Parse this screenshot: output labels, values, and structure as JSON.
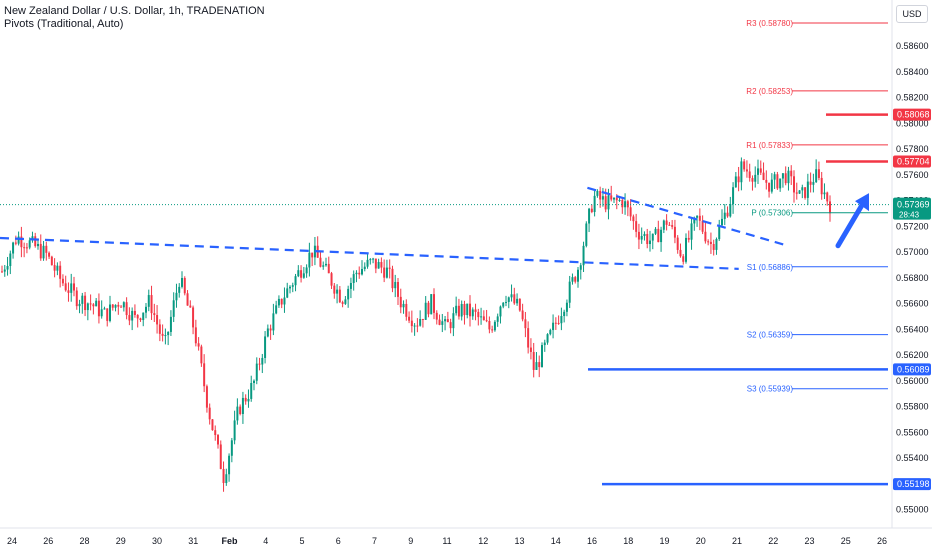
{
  "header": {
    "title": "New Zealand Dollar / U.S. Dollar, 1h, TRADENATION",
    "indicator": "Pivots (Traditional, Auto)",
    "currency": "USD"
  },
  "colors": {
    "up": "#089981",
    "down": "#f23645",
    "trend": "#2962ff",
    "resistance": "#f23645",
    "support": "#2962ff",
    "pivot": "#089981",
    "grid_text": "#131722"
  },
  "chart_data": {
    "type": "candlestick",
    "instrument": "NZD/USD",
    "timeframe": "1h",
    "ylim": [
      0.5495,
      0.5885
    ],
    "y_ticks": [
      "0.58600",
      "0.58400",
      "0.58200",
      "0.58000",
      "0.57800",
      "0.57600",
      "0.57400",
      "0.57200",
      "0.57000",
      "0.56800",
      "0.56600",
      "0.56400",
      "0.56200",
      "0.56000",
      "0.55800",
      "0.55600",
      "0.55400",
      "0.55200",
      "0.55000"
    ],
    "x_ticks": [
      "24",
      "26",
      "28",
      "29",
      "30",
      "31",
      "Feb",
      "4",
      "5",
      "6",
      "7",
      "9",
      "11",
      "12",
      "13",
      "14",
      "16",
      "18",
      "19",
      "20",
      "21",
      "22",
      "23",
      "25",
      "26"
    ],
    "price_path": [
      0.5685,
      0.5712,
      0.5706,
      0.5698,
      0.5678,
      0.5665,
      0.566,
      0.5651,
      0.5663,
      0.5648,
      0.5662,
      0.5626,
      0.568,
      0.564,
      0.5576,
      0.5525,
      0.5578,
      0.5597,
      0.564,
      0.5665,
      0.5683,
      0.5701,
      0.5683,
      0.5664,
      0.5685,
      0.5692,
      0.5686,
      0.5661,
      0.5645,
      0.5661,
      0.5641,
      0.5656,
      0.5651,
      0.564,
      0.5668,
      0.5656,
      0.5608,
      0.5633,
      0.566,
      0.5689,
      0.5743,
      0.5738,
      0.574,
      0.5716,
      0.5708,
      0.5725,
      0.5697,
      0.5726,
      0.5705,
      0.5732,
      0.5766,
      0.576,
      0.5752,
      0.576,
      0.5742,
      0.576,
      0.5737
    ],
    "pivots": [
      {
        "label": "R3 (0.58780)",
        "value": 0.5878,
        "kind": "resistance"
      },
      {
        "label": "R2 (0.58253)",
        "value": 0.58253,
        "kind": "resistance"
      },
      {
        "label": "R1 (0.57833)",
        "value": 0.57833,
        "kind": "resistance"
      },
      {
        "label": "P (0.57306)",
        "value": 0.57306,
        "kind": "pivot"
      },
      {
        "label": "S1 (0.56886)",
        "value": 0.56886,
        "kind": "support"
      },
      {
        "label": "S2 (0.56359)",
        "value": 0.56359,
        "kind": "support"
      },
      {
        "label": "S3 (0.55939)",
        "value": 0.55939,
        "kind": "support"
      }
    ],
    "levels": [
      {
        "label": "0.58068",
        "value": 0.58068,
        "kind": "resistance"
      },
      {
        "label": "0.57704",
        "value": 0.57704,
        "kind": "resistance"
      },
      {
        "label": "0.56089",
        "value": 0.56089,
        "kind": "support"
      },
      {
        "label": "0.55198",
        "value": 0.55198,
        "kind": "support"
      }
    ],
    "current": {
      "price": "0.57369",
      "value": 0.57369,
      "countdown": "28:43"
    },
    "trendlines": [
      {
        "from": [
          0.0,
          0.5711
        ],
        "to": [
          0.83,
          0.5687
        ]
      },
      {
        "from": [
          0.66,
          0.575
        ],
        "to": [
          0.88,
          0.5706
        ]
      }
    ],
    "arrow": {
      "direction": "up"
    }
  }
}
